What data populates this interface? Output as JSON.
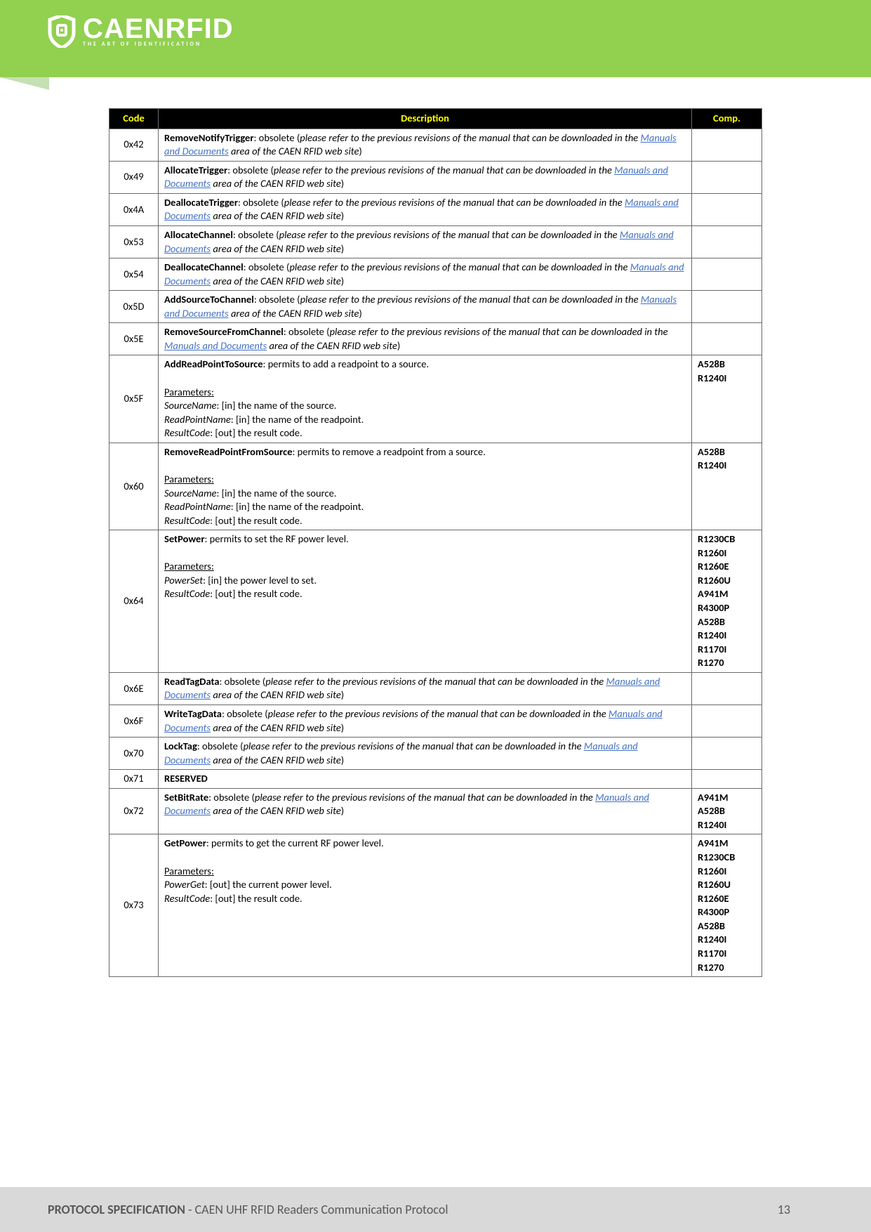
{
  "logo": {
    "main": "CAENRFID",
    "sub": "THE ART OF IDENTIFICATION"
  },
  "footer": {
    "bold": "PROTOCOL SPECIFICATION",
    "rest": " - CAEN UHF RFID Readers Communication Protocol",
    "page": "13"
  },
  "headers": {
    "code": "Code",
    "desc": "Description",
    "comp": "Comp."
  },
  "link_text": "Manuals and Documents",
  "rows": [
    {
      "code": "0x42",
      "name": "RemoveNotifyTrigger",
      "pre": ": obsolete (",
      "ital": "please refer to the previous revisions of the manual that can be downloaded in the ",
      "post": " area of the CAEN RFID web site",
      "close": ")",
      "comp": ""
    },
    {
      "code": "0x49",
      "name": "AllocateTrigger",
      "pre": ": obsolete (",
      "ital": "please refer to the previous revisions of the manual that can be downloaded in the ",
      "post": " area of the CAEN RFID web site",
      "close": ")",
      "comp": ""
    },
    {
      "code": "0x4A",
      "name": "DeallocateTrigger",
      "pre": ": obsolete (",
      "ital": "please refer to the previous revisions of the manual that can be downloaded in the ",
      "post": " area of the CAEN RFID web site",
      "close": ")",
      "comp": ""
    },
    {
      "code": "0x53",
      "name": "AllocateChannel",
      "pre": ": obsolete (",
      "ital": "please refer to the previous revisions of the manual that can be downloaded in the ",
      "post": " area of the CAEN RFID web site",
      "close": ")",
      "comp": ""
    },
    {
      "code": "0x54",
      "name": "DeallocateChannel",
      "pre": ": obsolete (",
      "ital": "please refer to the previous revisions of the manual that can be downloaded in the ",
      "post": " area of the CAEN RFID web site",
      "close": ")",
      "comp": ""
    },
    {
      "code": "0x5D",
      "name": "AddSourceToChannel",
      "pre": ": obsolete (",
      "ital": "please refer to the previous revisions of the manual that can be downloaded in the ",
      "post": " area of the CAEN RFID web site",
      "close": ")",
      "comp": ""
    },
    {
      "code": "0x5E",
      "name": "RemoveSourceFromChannel",
      "pre": ": obsolete (",
      "ital": "please refer to the previous revisions of the manual that can be downloaded in the ",
      "post": " area of the CAEN RFID web site",
      "close": ")",
      "comp": ""
    },
    {
      "code": "0x5F",
      "name": "AddReadPointToSource",
      "brief": ": permits to add a readpoint to a source.",
      "params": [
        {
          "k": "SourceName",
          "v": ": [in] the name of the source."
        },
        {
          "k": "ReadPointName",
          "v": ": [in] the name of the readpoint."
        },
        {
          "k": "ResultCode",
          "v": ": [out] the result code."
        }
      ],
      "comp": "A528B\nR1240I"
    },
    {
      "code": "0x60",
      "name": "RemoveReadPointFromSource",
      "brief": ": permits to remove a readpoint from a source.",
      "params": [
        {
          "k": "SourceName",
          "v": ": [in] the name of the source."
        },
        {
          "k": "ReadPointName",
          "v": ": [in] the name of the readpoint."
        },
        {
          "k": "ResultCode",
          "v": ": [out] the result code."
        }
      ],
      "comp": "A528B\nR1240I"
    },
    {
      "code": "0x64",
      "name": "SetPower",
      "brief": ": permits to set the RF power level.",
      "params": [
        {
          "k": "PowerSet",
          "v": ": [in] the power level to set."
        },
        {
          "k": "ResultCode",
          "v": ": [out] the result code."
        }
      ],
      "comp": "R1230CB\nR1260I\nR1260E\nR1260U\nA941M\nR4300P\nA528B\nR1240I\nR1170I\nR1270"
    },
    {
      "code": "0x6E",
      "name": "ReadTagData",
      "pre": ": obsolete (",
      "ital": "please refer to the previous revisions of the manual that can be downloaded in the ",
      "post": " area of the CAEN RFID web site",
      "close": ")",
      "comp": ""
    },
    {
      "code": "0x6F",
      "name": "WriteTagData",
      "pre": ": obsolete (",
      "ital": "please refer to the previous revisions of the manual that can be downloaded in the ",
      "post": " area of the CAEN RFID web site",
      "close": ")",
      "comp": ""
    },
    {
      "code": "0x70",
      "name": "LockTag",
      "pre": ": obsolete (",
      "ital": "please refer to the previous revisions of the manual that can be downloaded in the ",
      "post": " area of the CAEN RFID web site",
      "close": ")",
      "comp": ""
    },
    {
      "code": "0x71",
      "name": "RESERVED",
      "reserved": true,
      "comp": ""
    },
    {
      "code": "0x72",
      "name": "SetBitRate",
      "pre": ": obsolete (",
      "ital": "please refer to the previous revisions of the manual that can be downloaded in the ",
      "post": " area of the CAEN RFID web site",
      "close": ")",
      "comp": "A941M\nA528B\nR1240I"
    },
    {
      "code": "0x73",
      "name": "GetPower",
      "brief": ": permits to get the current RF power level.",
      "params": [
        {
          "k": "PowerGet",
          "v": ": [out] the current power level."
        },
        {
          "k": "ResultCode",
          "v": ": [out] the result code."
        }
      ],
      "comp": "A941M\nR1230CB\nR1260I\nR1260U\nR1260E\nR4300P\nA528B\nR1240I\nR1170I\nR1270"
    }
  ],
  "params_label": "Parameters:"
}
